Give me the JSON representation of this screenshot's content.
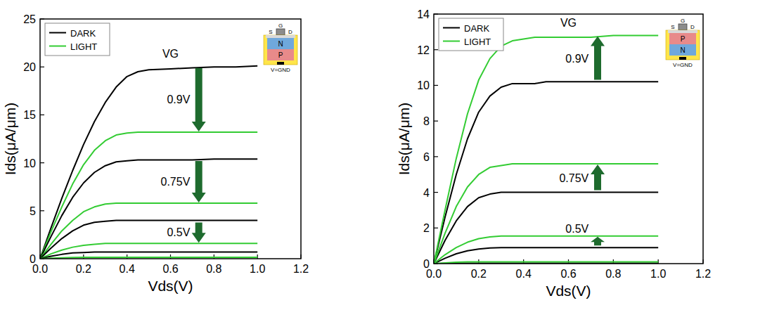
{
  "chart_data": [
    {
      "type": "line",
      "x_label": "Vds(V)",
      "y_label": "Ids(μA/μm)",
      "xlim": [
        0,
        1.2
      ],
      "xticks": [
        {
          "value": 0,
          "label": "0.0"
        },
        0.2,
        0.4,
        0.6,
        0.8,
        {
          "value": 1,
          "label": "1.0"
        },
        1.2
      ],
      "ylim": [
        0,
        25
      ],
      "yticks": [
        0,
        5,
        10,
        15,
        20,
        25
      ],
      "legend": "upper left",
      "annotations": {
        "heading": "VG",
        "levels": [
          "0.9V",
          "0.75V",
          "0.5V"
        ]
      },
      "inset": {
        "gate": "G",
        "source": "S",
        "drain": "D",
        "layers": [
          {
            "label": "N",
            "color": "#6fa8dc"
          },
          {
            "label": "P",
            "color": "#e88a8a"
          }
        ],
        "ground": "V=GND"
      },
      "x": [
        0,
        0.05,
        0.1,
        0.15,
        0.2,
        0.25,
        0.3,
        0.35,
        0.4,
        0.45,
        0.5,
        0.6,
        0.7,
        0.8,
        0.9,
        1.0
      ],
      "series": [
        {
          "name": "DARK",
          "color": "#000000",
          "values": [
            0,
            3.2,
            6.3,
            9.2,
            11.9,
            14.3,
            16.3,
            17.9,
            19.0,
            19.5,
            19.7,
            19.8,
            19.9,
            20.0,
            20.0,
            20.1
          ]
        },
        {
          "name": "LIGHT",
          "color": "#33cc33",
          "values": [
            0,
            2.8,
            5.4,
            7.8,
            9.8,
            11.3,
            12.3,
            12.9,
            13.1,
            13.2,
            13.2,
            13.2,
            13.2,
            13.2,
            13.2,
            13.2
          ]
        },
        {
          "name": "DARK",
          "color": "#000000",
          "values": [
            0,
            2.3,
            4.5,
            6.4,
            7.9,
            9.0,
            9.7,
            10.1,
            10.2,
            10.3,
            10.3,
            10.3,
            10.3,
            10.4,
            10.4,
            10.4
          ]
        },
        {
          "name": "LIGHT",
          "color": "#33cc33",
          "values": [
            0,
            1.5,
            2.9,
            4.0,
            4.9,
            5.4,
            5.7,
            5.8,
            5.8,
            5.8,
            5.8,
            5.8,
            5.8,
            5.8,
            5.8,
            5.8
          ]
        },
        {
          "name": "DARK",
          "color": "#000000",
          "values": [
            0,
            1.1,
            2.1,
            2.9,
            3.5,
            3.8,
            3.9,
            4.0,
            4.0,
            4.0,
            4.0,
            4.0,
            4.0,
            4.0,
            4.0,
            4.0
          ]
        },
        {
          "name": "LIGHT",
          "color": "#33cc33",
          "values": [
            0,
            0.5,
            0.9,
            1.2,
            1.4,
            1.5,
            1.6,
            1.6,
            1.6,
            1.6,
            1.6,
            1.6,
            1.6,
            1.6,
            1.6,
            1.6
          ]
        },
        {
          "name": "DARK",
          "color": "#000000",
          "values": [
            0,
            0.25,
            0.45,
            0.6,
            0.65,
            0.7,
            0.7,
            0.7,
            0.7,
            0.7,
            0.7,
            0.7,
            0.7,
            0.7,
            0.7,
            0.7
          ]
        },
        {
          "name": "LIGHT",
          "color": "#33cc33",
          "values": [
            0,
            0.05,
            0.1,
            0.13,
            0.15,
            0.15,
            0.15,
            0.15,
            0.15,
            0.15,
            0.15,
            0.15,
            0.15,
            0.15,
            0.15,
            0.15
          ]
        }
      ]
    },
    {
      "type": "line",
      "x_label": "Vds(V)",
      "y_label": "Ids(μA/μm)",
      "xlim": [
        0,
        1.2
      ],
      "xticks": [
        {
          "value": 0,
          "label": "0.0"
        },
        0.2,
        0.4,
        0.6,
        0.8,
        {
          "value": 1,
          "label": "1.0"
        },
        1.2
      ],
      "ylim": [
        0,
        14
      ],
      "yticks": [
        0,
        2,
        4,
        6,
        8,
        10,
        12,
        14
      ],
      "legend": "upper left",
      "annotations": {
        "heading": "VG",
        "levels": [
          "0.9V",
          "0.75V",
          "0.5V"
        ]
      },
      "inset": {
        "gate": "G",
        "source": "S",
        "drain": "D",
        "layers": [
          {
            "label": "P",
            "color": "#e88a8a"
          },
          {
            "label": "N",
            "color": "#6fa8dc"
          }
        ],
        "ground": "V=GND"
      },
      "x": [
        0,
        0.05,
        0.1,
        0.15,
        0.2,
        0.25,
        0.3,
        0.35,
        0.4,
        0.45,
        0.5,
        0.6,
        0.7,
        0.8,
        0.9,
        1.0
      ],
      "series": [
        {
          "name": "DARK",
          "color": "#000000",
          "values": [
            0,
            2.6,
            5.0,
            7.0,
            8.5,
            9.4,
            9.9,
            10.1,
            10.1,
            10.1,
            10.2,
            10.2,
            10.2,
            10.2,
            10.2,
            10.2
          ]
        },
        {
          "name": "LIGHT",
          "color": "#33cc33",
          "values": [
            0,
            3.0,
            5.9,
            8.4,
            10.3,
            11.5,
            12.2,
            12.5,
            12.6,
            12.7,
            12.7,
            12.7,
            12.7,
            12.8,
            12.8,
            12.8
          ]
        },
        {
          "name": "DARK",
          "color": "#000000",
          "values": [
            0,
            1.3,
            2.4,
            3.2,
            3.7,
            3.9,
            4.0,
            4.0,
            4.0,
            4.0,
            4.0,
            4.0,
            4.0,
            4.0,
            4.0,
            4.0
          ]
        },
        {
          "name": "LIGHT",
          "color": "#33cc33",
          "values": [
            0,
            1.7,
            3.2,
            4.3,
            5.0,
            5.4,
            5.5,
            5.6,
            5.6,
            5.6,
            5.6,
            5.6,
            5.6,
            5.6,
            5.6,
            5.6
          ]
        },
        {
          "name": "DARK",
          "color": "#000000",
          "values": [
            0,
            0.3,
            0.55,
            0.72,
            0.82,
            0.88,
            0.9,
            0.9,
            0.9,
            0.9,
            0.9,
            0.9,
            0.9,
            0.9,
            0.9,
            0.9
          ]
        },
        {
          "name": "LIGHT",
          "color": "#33cc33",
          "values": [
            0,
            0.5,
            0.9,
            1.2,
            1.4,
            1.5,
            1.55,
            1.55,
            1.55,
            1.55,
            1.55,
            1.55,
            1.55,
            1.55,
            1.55,
            1.55
          ]
        },
        {
          "name": "DARK",
          "color": "#000000",
          "values": [
            0,
            0.01,
            0.02,
            0.02,
            0.02,
            0.02,
            0.02,
            0.02,
            0.02,
            0.02,
            0.02,
            0.02,
            0.02,
            0.02,
            0.02,
            0.02
          ]
        },
        {
          "name": "LIGHT",
          "color": "#33cc33",
          "values": [
            0,
            0.04,
            0.08,
            0.1,
            0.1,
            0.1,
            0.1,
            0.1,
            0.1,
            0.1,
            0.1,
            0.1,
            0.1,
            0.1,
            0.1,
            0.1
          ]
        }
      ]
    }
  ]
}
